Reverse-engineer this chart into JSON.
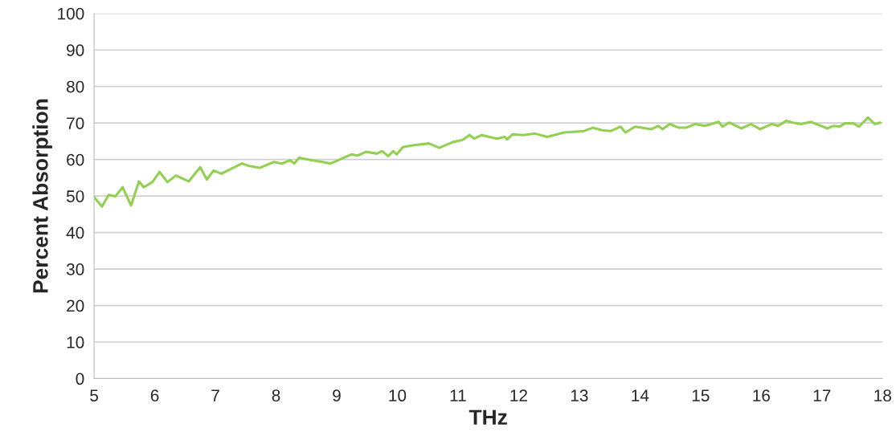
{
  "chart_data": {
    "type": "line",
    "xlabel": "THz",
    "ylabel": "Percent Absorption",
    "xlim": [
      5,
      18
    ],
    "xticks": [
      5,
      6,
      7,
      8,
      9,
      10,
      11,
      12,
      13,
      14,
      15,
      16,
      17,
      18
    ],
    "ylim": [
      0,
      100
    ],
    "yticks": [
      0,
      10,
      20,
      30,
      40,
      50,
      60,
      70,
      80,
      90,
      100
    ],
    "grid": "y",
    "marker": "none",
    "line_style": "solid",
    "series": [
      {
        "color": "#92d050",
        "x": [
          5.0,
          5.13,
          5.24,
          5.35,
          5.47,
          5.61,
          5.74,
          5.82,
          5.96,
          6.08,
          6.21,
          6.35,
          6.56,
          6.75,
          6.86,
          6.97,
          7.1,
          7.29,
          7.44,
          7.56,
          7.73,
          7.96,
          8.1,
          8.23,
          8.3,
          8.38,
          8.58,
          8.77,
          8.9,
          9.12,
          9.24,
          9.35,
          9.48,
          9.66,
          9.75,
          9.85,
          9.93,
          9.99,
          10.09,
          10.26,
          10.52,
          10.69,
          10.92,
          11.07,
          11.19,
          11.27,
          11.39,
          11.64,
          11.77,
          11.81,
          11.9,
          12.08,
          12.27,
          12.47,
          12.75,
          13.08,
          13.22,
          13.38,
          13.52,
          13.68,
          13.76,
          13.92,
          14.19,
          14.3,
          14.37,
          14.49,
          14.64,
          14.76,
          14.91,
          15.07,
          15.3,
          15.36,
          15.47,
          15.67,
          15.83,
          15.98,
          16.17,
          16.28,
          16.41,
          16.57,
          16.66,
          16.82,
          17.09,
          17.19,
          17.29,
          17.38,
          17.52,
          17.61,
          17.76,
          17.87,
          17.96
        ],
        "values": [
          49.7,
          47.1,
          50.3,
          49.9,
          52.4,
          47.4,
          54.0,
          52.4,
          53.8,
          56.6,
          53.8,
          55.6,
          54.0,
          57.9,
          54.5,
          57.0,
          56.1,
          57.7,
          58.9,
          58.2,
          57.7,
          59.3,
          58.9,
          59.8,
          58.9,
          60.5,
          59.8,
          59.3,
          58.9,
          60.5,
          61.4,
          61.1,
          62.1,
          61.6,
          62.3,
          60.9,
          62.3,
          61.4,
          63.4,
          63.9,
          64.4,
          63.2,
          64.8,
          65.3,
          66.7,
          65.7,
          66.7,
          65.7,
          66.2,
          65.5,
          66.9,
          66.7,
          67.1,
          66.2,
          67.4,
          67.8,
          68.7,
          68.0,
          67.8,
          69.0,
          67.4,
          69.0,
          68.3,
          69.2,
          68.3,
          69.7,
          68.7,
          68.7,
          69.7,
          69.2,
          70.3,
          69.0,
          70.1,
          68.5,
          69.7,
          68.3,
          69.7,
          69.2,
          70.6,
          69.9,
          69.7,
          70.3,
          68.5,
          69.2,
          69.0,
          69.9,
          69.9,
          69.0,
          71.5,
          69.7,
          70.1
        ]
      }
    ]
  }
}
